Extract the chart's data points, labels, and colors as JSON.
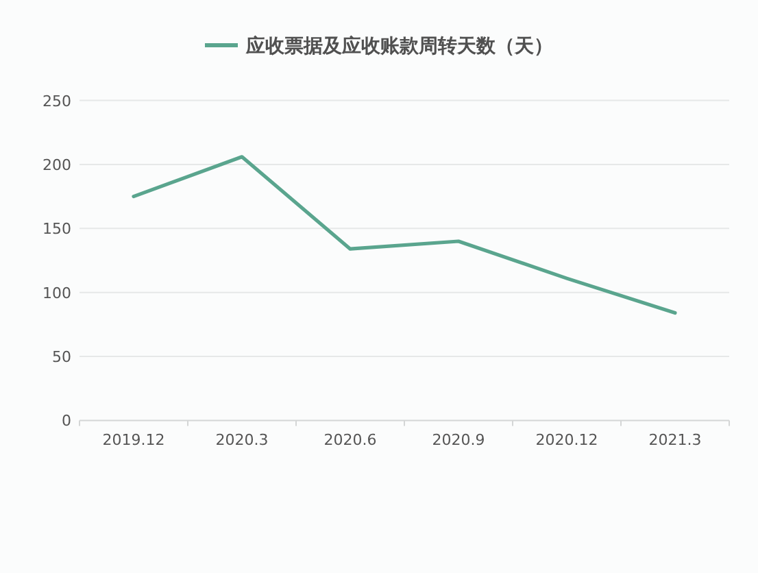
{
  "chart_data": {
    "type": "line",
    "categories": [
      "2019.12",
      "2020.3",
      "2020.6",
      "2020.9",
      "2020.12",
      "2021.3"
    ],
    "series": [
      {
        "name": "应收票据及应收账款周转天数（天）",
        "color": "#5aa58e",
        "values": [
          175,
          206,
          134,
          140,
          111,
          84
        ]
      }
    ],
    "ylim": [
      0,
      250
    ],
    "yticks": [
      0,
      50,
      100,
      150,
      200,
      250
    ],
    "grid": "y",
    "legend": "top",
    "marker": "none",
    "line_style": "solid"
  }
}
